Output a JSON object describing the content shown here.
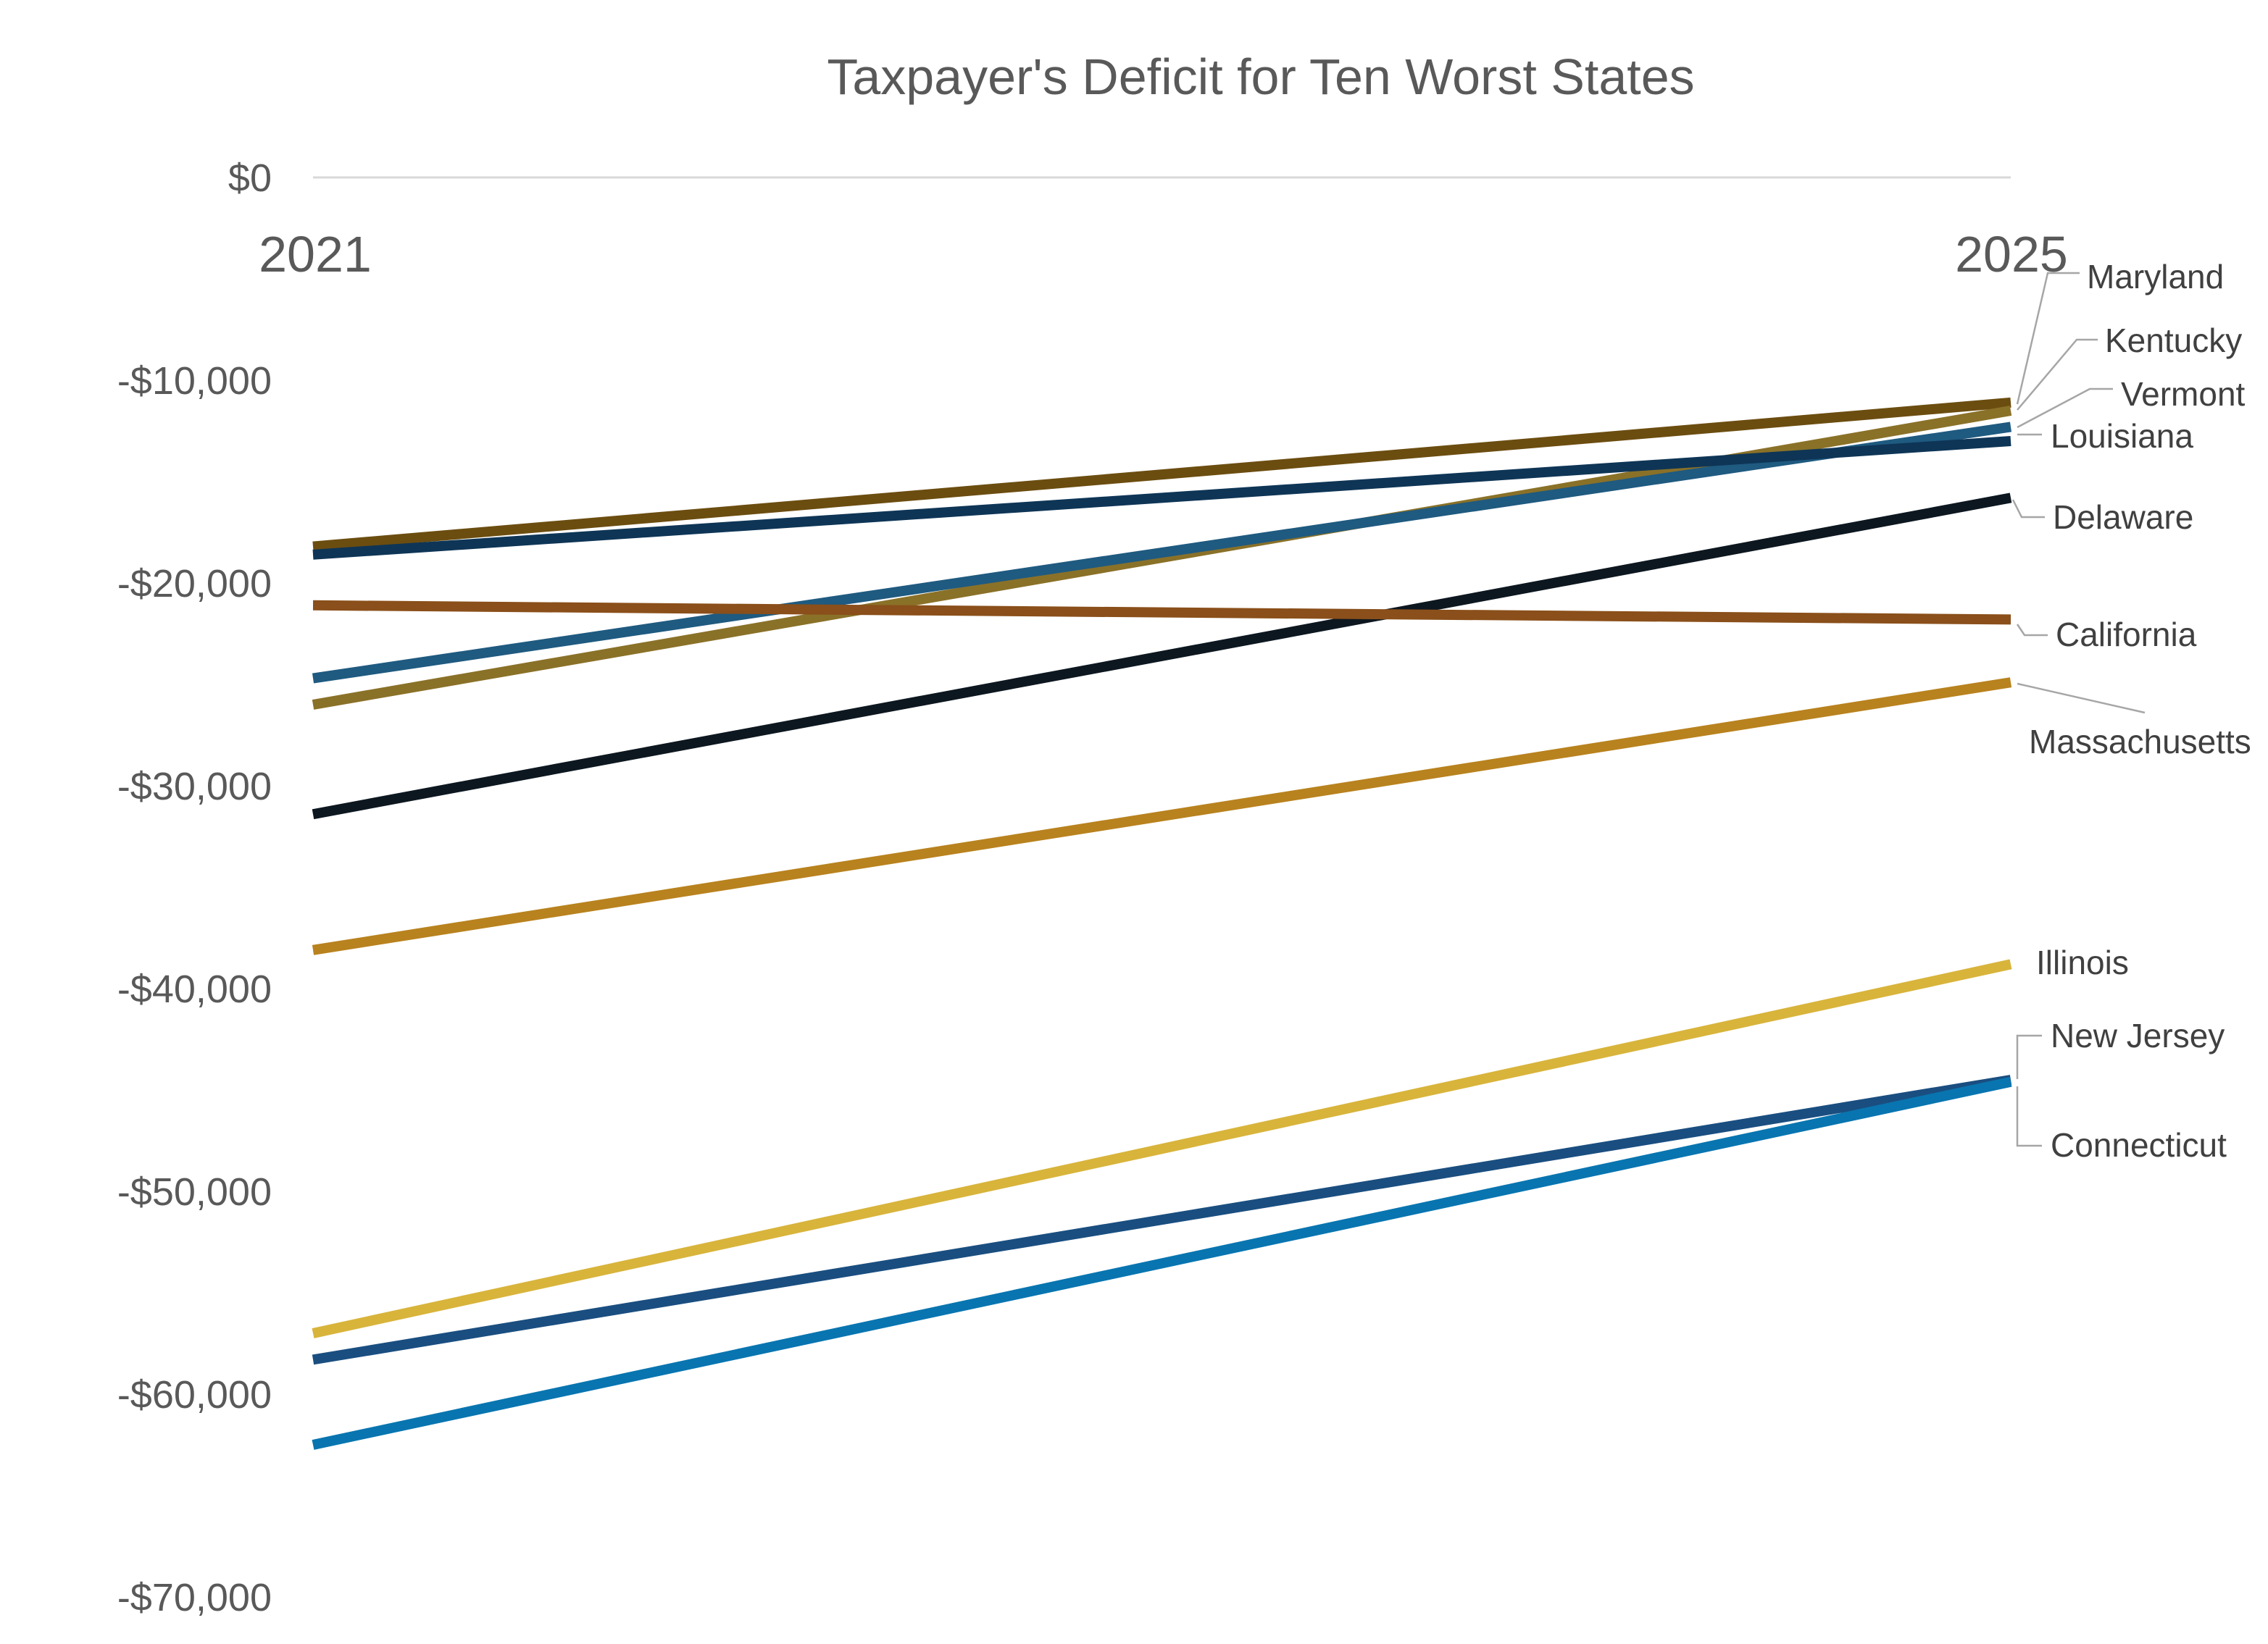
{
  "chart_data": {
    "type": "line",
    "title": "Taxpayer's Deficit for Ten Worst States",
    "categories": [
      "2021",
      "2025"
    ],
    "ylim": [
      -70000,
      0
    ],
    "yticks": [
      {
        "value": 0,
        "label": "$0"
      },
      {
        "value": -10000,
        "label": "-$10,000"
      },
      {
        "value": -20000,
        "label": "-$20,000"
      },
      {
        "value": -30000,
        "label": "-$30,000"
      },
      {
        "value": -40000,
        "label": "-$40,000"
      },
      {
        "value": -50000,
        "label": "-$50,000"
      },
      {
        "value": -60000,
        "label": "-$60,000"
      },
      {
        "value": -70000,
        "label": "-$70,000"
      }
    ],
    "grid": false,
    "legend": "data labels at right end of lines",
    "series": [
      {
        "name": "Maryland",
        "values": [
          -18200,
          -11100
        ],
        "color": "#6B4D10"
      },
      {
        "name": "Kentucky",
        "values": [
          -26000,
          -11500
        ],
        "color": "#8A7128"
      },
      {
        "name": "Vermont",
        "values": [
          -24700,
          -12300
        ],
        "color": "#1F5A80"
      },
      {
        "name": "Louisiana",
        "values": [
          -18600,
          -13000
        ],
        "color": "#0E3556"
      },
      {
        "name": "Delaware",
        "values": [
          -31400,
          -15800
        ],
        "color": "#0D1720"
      },
      {
        "name": "California",
        "values": [
          -21100,
          -21800
        ],
        "color": "#8A4F1A"
      },
      {
        "name": "Massachusetts",
        "values": [
          -38100,
          -24900
        ],
        "color": "#B8821E"
      },
      {
        "name": "Illinois",
        "values": [
          -57000,
          -38800
        ],
        "color": "#D8B43B"
      },
      {
        "name": "New Jersey",
        "values": [
          -58300,
          -44500
        ],
        "color": "#1A4E80"
      },
      {
        "name": "Connecticut",
        "values": [
          -62500,
          -44600
        ],
        "color": "#0875B0"
      }
    ]
  }
}
